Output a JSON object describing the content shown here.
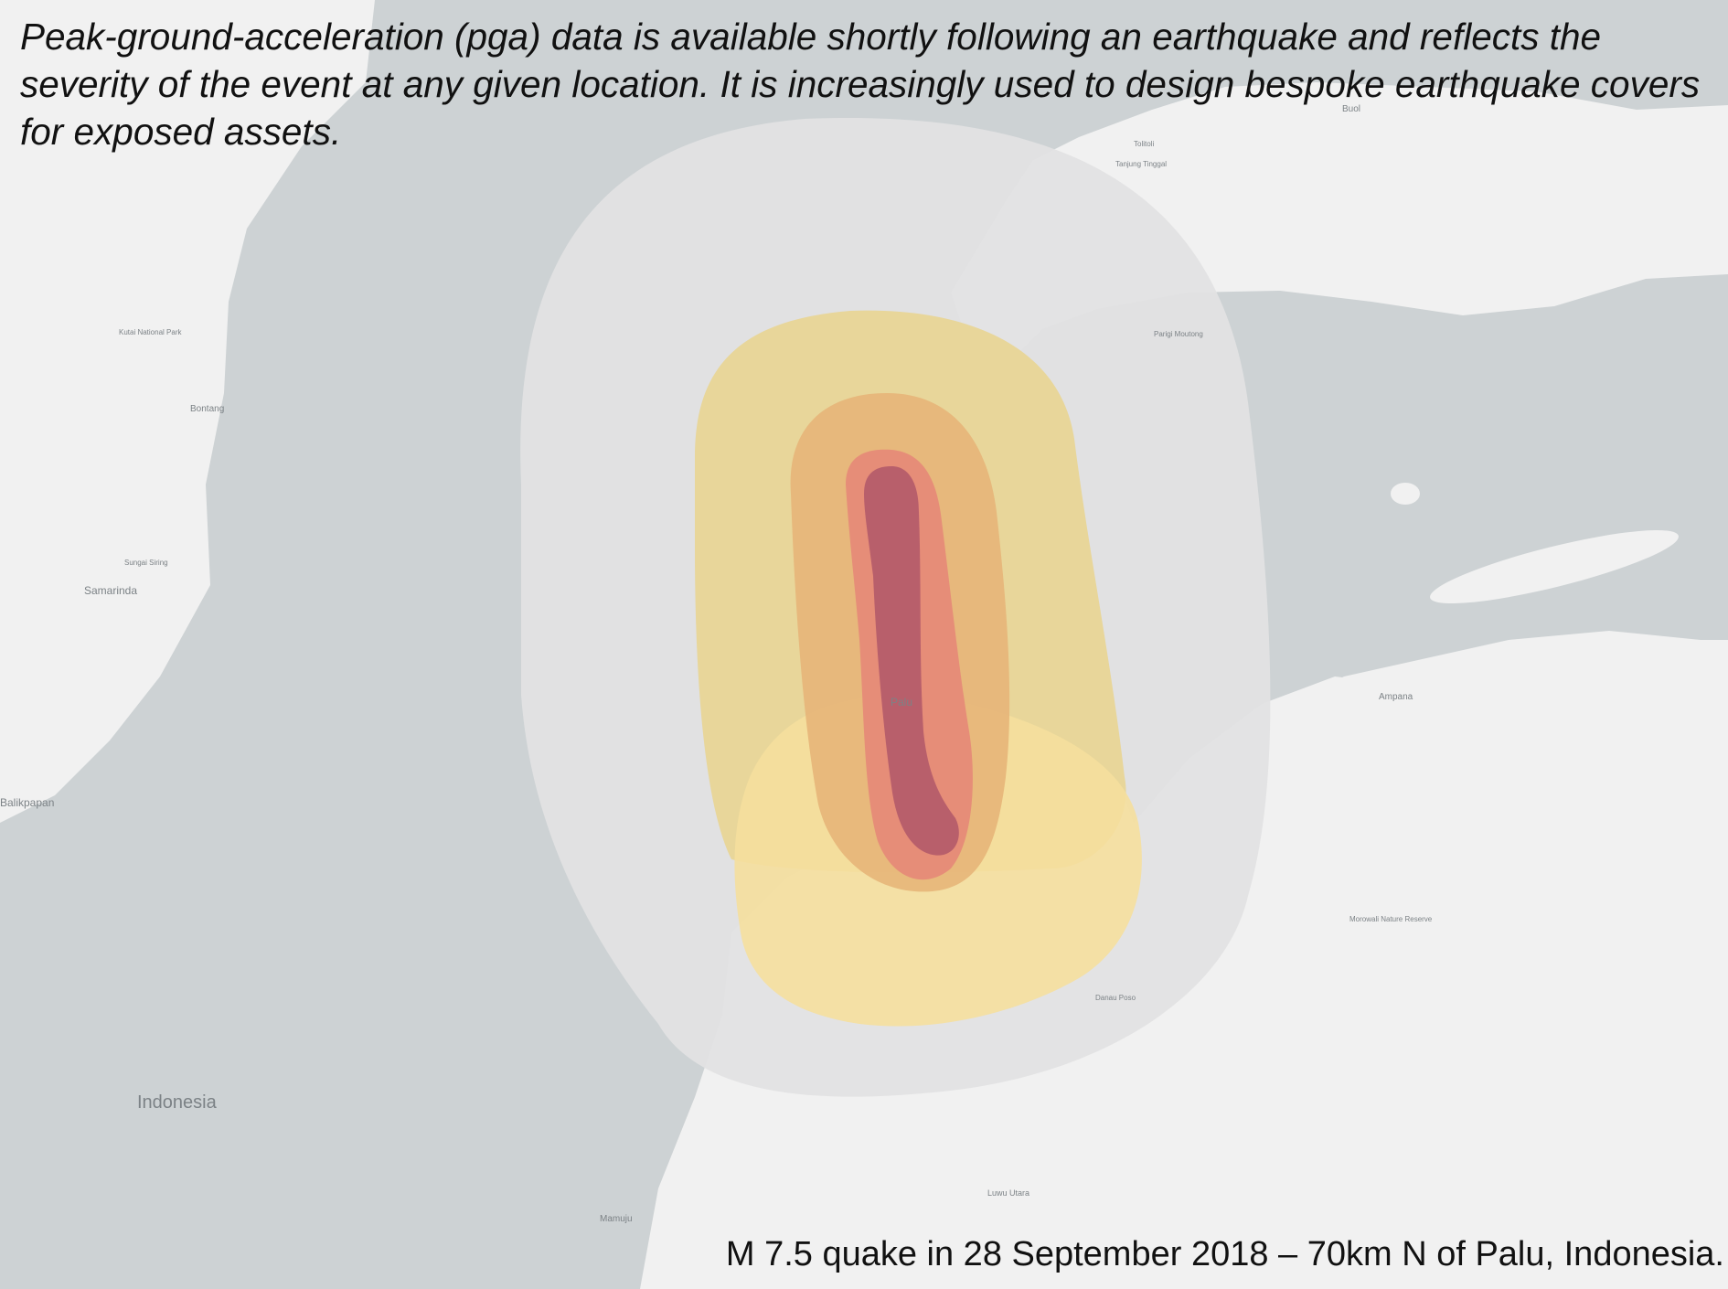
{
  "headline": "Peak-ground-acceleration (pga) data is available shortly following an earthquake and reflects the severity of the event at any given location. It is increasingly used to design bespoke earthquake covers for exposed assets.",
  "caption": "M 7.5 quake in 28 September 2018 – 70km N of Palu, Indonesia.",
  "map": {
    "colors": {
      "sea": "#cdd2d4",
      "land": "#f1f1f1",
      "outer_zone": "#e1e2e3",
      "zone_yellow": "#e8d48f",
      "zone_light": "#f5df9d",
      "zone_orange": "#e6b478",
      "zone_pink": "#e68878",
      "zone_core": "#b45b6a"
    },
    "labels": {
      "indonesia": "Indonesia",
      "samarinda": "Samarinda",
      "balikpapan": "Balikpapan",
      "bontang": "Bontang",
      "kutai": "Kutai National Park",
      "sungai_siring": "Sungai Siring",
      "palu": "Palu",
      "buol": "Buol",
      "ampana": "Ampana",
      "mamuju": "Mamuju",
      "luwu_utara": "Luwu Utara",
      "morowali": "Morowali Nature Reserve",
      "poso": "Danau Poso",
      "tolitoli": "Tolitoli",
      "tanjung": "Tanjung Tinggal",
      "parigi": "Parigi Moutong"
    }
  }
}
